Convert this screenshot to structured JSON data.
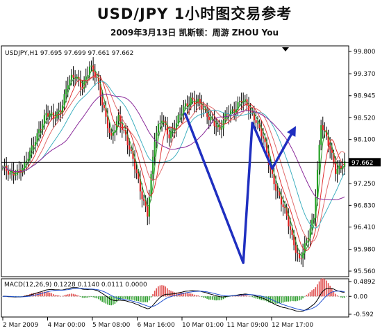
{
  "title": "USD/JPY  1小时图交易参考",
  "subtitle": "2009年3月13日   凯斯顿：周游 ZHOU You",
  "chart_data": {
    "type": "candlestick",
    "symbol_header": "USDJPY,H1  97.695 97.699 97.661 97.662",
    "current_price_label": "97.662",
    "current_price": 97.662,
    "ylim": [
      95.56,
      99.8
    ],
    "y_ticks": [
      "99.800",
      "99.370",
      "98.945",
      "98.520",
      "98.100",
      "97.250",
      "96.830",
      "96.410",
      "95.980",
      "95.560"
    ],
    "x_ticks": [
      "2 Mar 2009",
      "4 Mar 00:00",
      "5 Mar 08:00",
      "6 Mar 16:00",
      "10 Mar 01:00",
      "11 Mar 09:00",
      "12 Mar 17:00"
    ],
    "price_path": [
      [
        0,
        97.55
      ],
      [
        4,
        97.4
      ],
      [
        8,
        97.5
      ],
      [
        12,
        97.6
      ],
      [
        16,
        97.9
      ],
      [
        20,
        98.3
      ],
      [
        24,
        98.6
      ],
      [
        28,
        98.5
      ],
      [
        32,
        98.7
      ],
      [
        36,
        99.2
      ],
      [
        40,
        99.3
      ],
      [
        44,
        99.15
      ],
      [
        48,
        99.5
      ],
      [
        52,
        99.25
      ],
      [
        56,
        98.7
      ],
      [
        60,
        98.1
      ],
      [
        64,
        98.5
      ],
      [
        68,
        98.2
      ],
      [
        72,
        97.7
      ],
      [
        76,
        97.1
      ],
      [
        80,
        96.7
      ],
      [
        84,
        98.1
      ],
      [
        88,
        98.5
      ],
      [
        92,
        98.2
      ],
      [
        96,
        98.4
      ],
      [
        100,
        98.7
      ],
      [
        104,
        98.9
      ],
      [
        108,
        98.8
      ],
      [
        112,
        98.6
      ],
      [
        116,
        98.5
      ],
      [
        120,
        98.25
      ],
      [
        124,
        98.6
      ],
      [
        128,
        98.7
      ],
      [
        132,
        98.85
      ],
      [
        136,
        98.7
      ],
      [
        140,
        98.5
      ],
      [
        144,
        98.1
      ],
      [
        148,
        97.5
      ],
      [
        152,
        97.1
      ],
      [
        156,
        96.7
      ],
      [
        160,
        96.2
      ],
      [
        164,
        95.8
      ],
      [
        168,
        96.1
      ],
      [
        172,
        96.6
      ],
      [
        176,
        98.45
      ],
      [
        180,
        98.0
      ],
      [
        184,
        97.5
      ],
      [
        188,
        97.65
      ]
    ],
    "moving_averages": [
      {
        "color": "#2e9e2e",
        "window": 4
      },
      {
        "color": "#e03030",
        "window": 8
      },
      {
        "color": "#e06a6a",
        "window": 14
      },
      {
        "color": "#40b0c0",
        "window": 22
      },
      {
        "color": "#8a2a9a",
        "window": 36
      }
    ],
    "annotation": {
      "color": "#1f2fc0",
      "path": [
        [
          100.8,
          98.6
        ],
        [
          101.6,
          98.54
        ],
        [
          133,
          95.72
        ],
        [
          138,
          98.42
        ],
        [
          149,
          97.54
        ],
        [
          161,
          98.29
        ]
      ]
    },
    "macd": {
      "label": "MACD(12,26,9)  0.1228  0.1140  0.0111  0.0000",
      "ylim": [
        -0.592,
        0.4892
      ],
      "y_ticks": [
        "0.4892",
        "0.00",
        "-0.592"
      ]
    }
  }
}
